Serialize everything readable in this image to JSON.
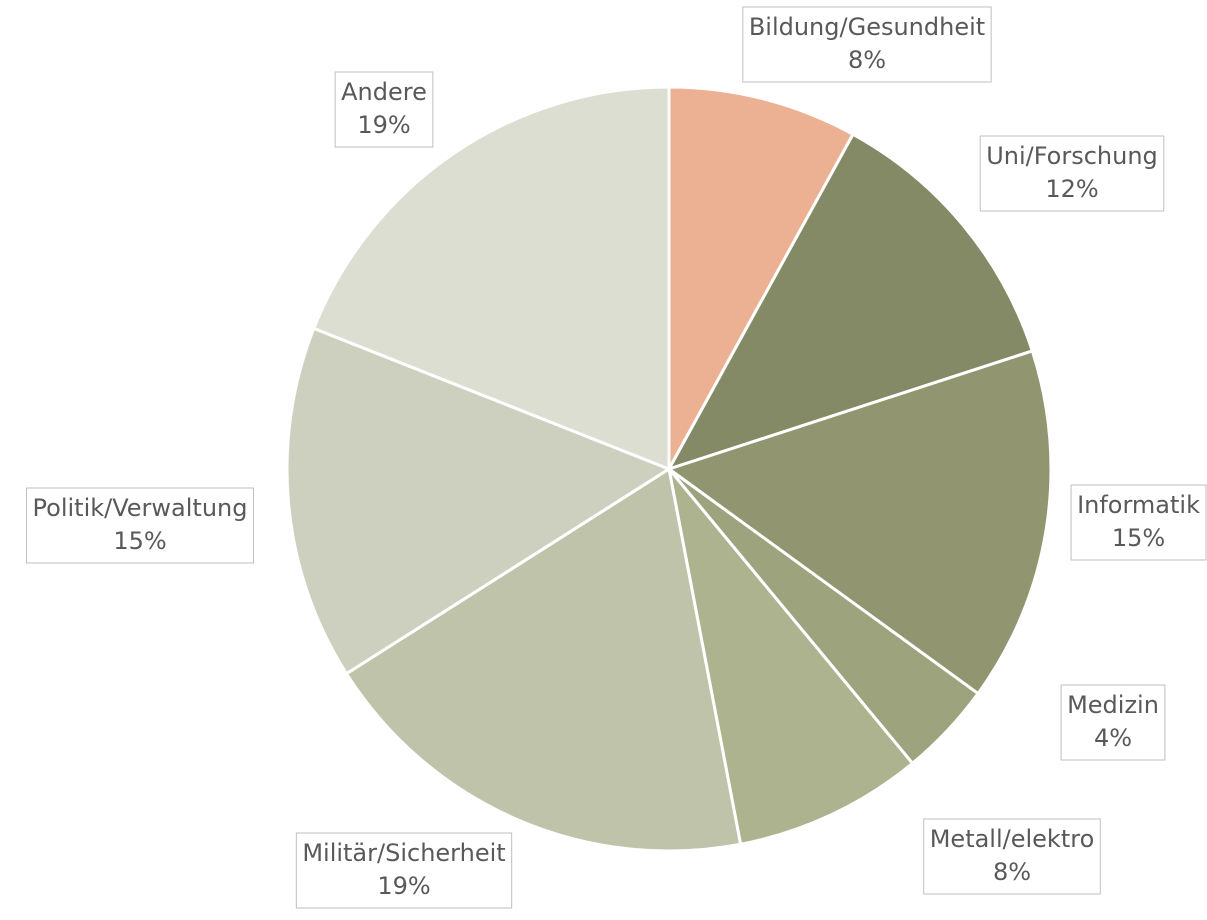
{
  "chart_data": {
    "type": "pie",
    "categories": [
      "Bildung/Gesundheit",
      "Uni/Forschung",
      "Informatik",
      "Medizin",
      "Metall/elektro",
      "Militär/Sicherheit",
      "Politik/Verwaltung",
      "Andere"
    ],
    "values": [
      8,
      12,
      15,
      4,
      8,
      19,
      15,
      19
    ],
    "value_labels": [
      "8%",
      "12%",
      "15%",
      "4%",
      "8%",
      "19%",
      "15%",
      "19%"
    ],
    "colors": [
      "#ebb192",
      "#848a66",
      "#919670",
      "#9da37d",
      "#adb38f",
      "#bfc3a9",
      "#cdd0bf",
      "#dcded2"
    ]
  }
}
